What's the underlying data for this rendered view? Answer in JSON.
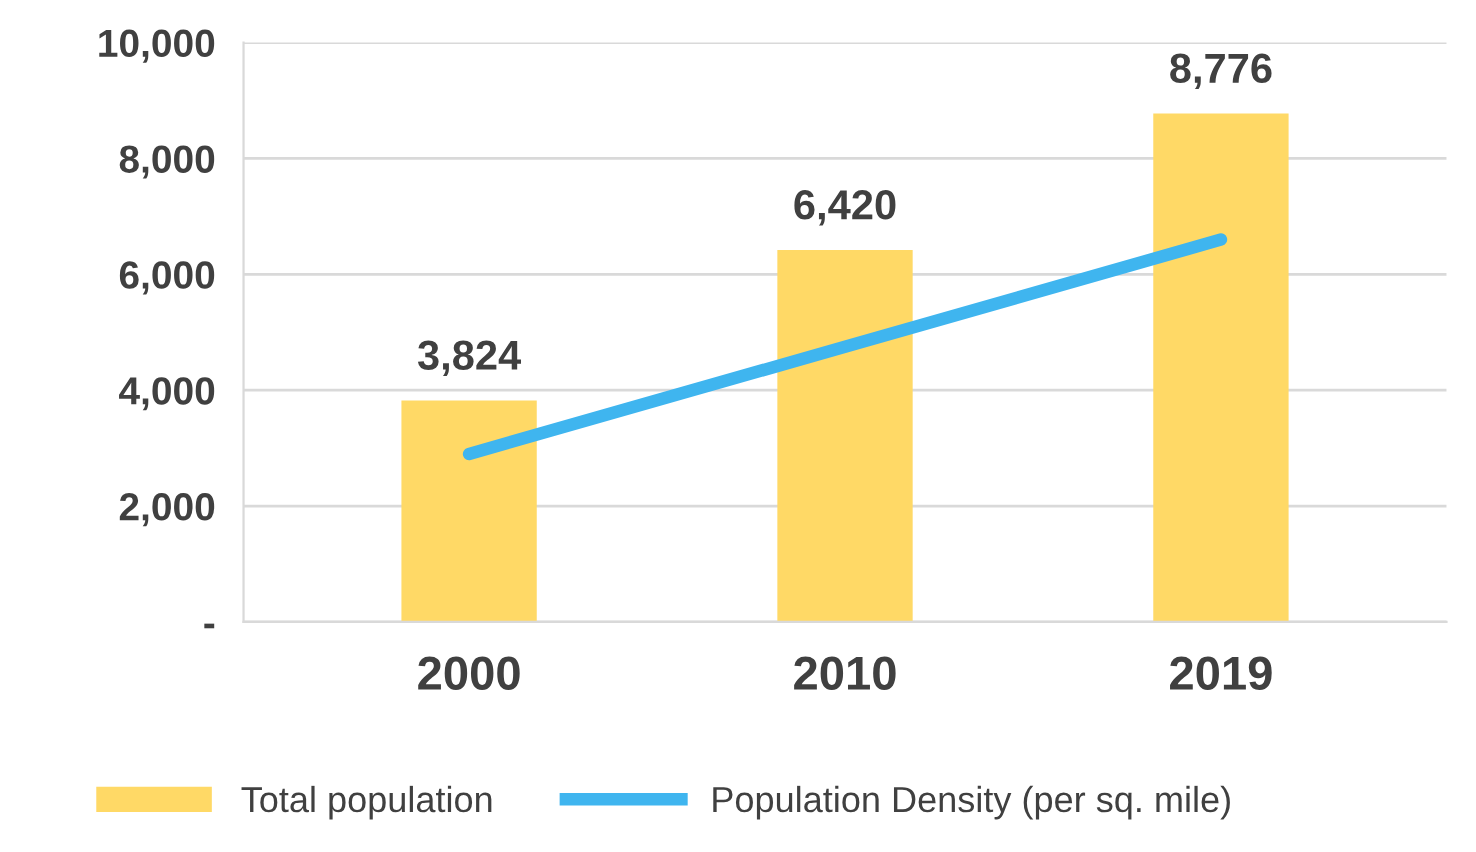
{
  "chart_data": {
    "type": "bar",
    "categories": [
      "2000",
      "2010",
      "2019"
    ],
    "series": [
      {
        "name": "Total population",
        "color": "#ffd966",
        "values": [
          3824,
          6420,
          8776
        ],
        "value_labels": [
          "3,824",
          "6,420",
          "8,776"
        ]
      },
      {
        "name": "Population Density (per sq. mile)",
        "type": "line",
        "color": "#3fb5ef",
        "values": [
          2900,
          4750,
          6600
        ]
      }
    ],
    "ylim": [
      0,
      10000
    ],
    "yticks": [
      {
        "value": 0,
        "label": "-"
      },
      {
        "value": 2000,
        "label": "2,000"
      },
      {
        "value": 4000,
        "label": "4,000"
      },
      {
        "value": 6000,
        "label": "6,000"
      },
      {
        "value": 8000,
        "label": "8,000"
      },
      {
        "value": 10000,
        "label": "10,000"
      }
    ],
    "grid": "y",
    "legend": "bottom"
  }
}
